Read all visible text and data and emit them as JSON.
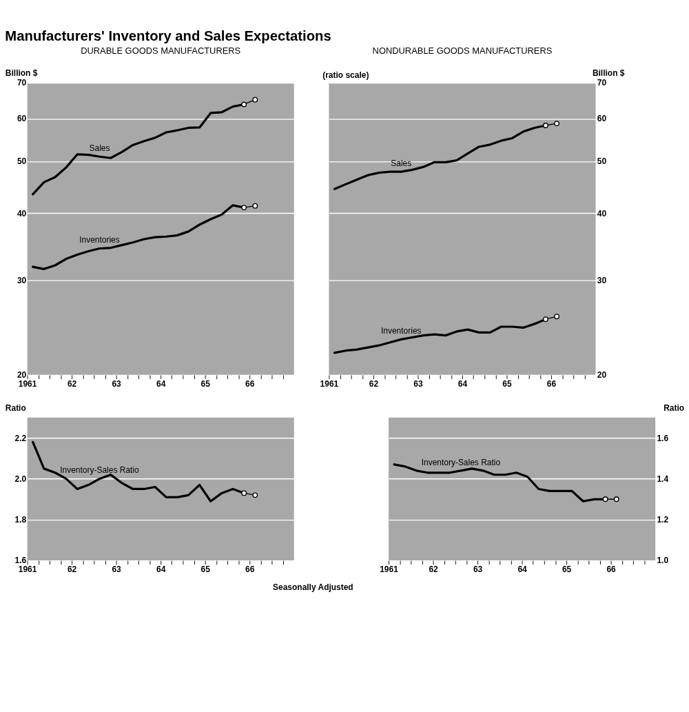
{
  "chart_data": [
    {
      "type": "line",
      "title": "Manufacturers' Inventory and Sales Expectations",
      "subtitle": "DURABLE GOODS MANUFACTURERS",
      "ylabel": "Billion $",
      "log": "y",
      "grid": "y",
      "xlim": [
        1961,
        1967
      ],
      "ylim": [
        20,
        70
      ],
      "yticks": [
        20,
        30,
        40,
        50,
        60,
        70
      ],
      "xticks": [
        {
          "value": 1961,
          "label": "1961"
        },
        {
          "value": 1961.25,
          "label": null
        },
        {
          "value": 1961.5,
          "label": null
        },
        {
          "value": 1961.75,
          "label": null
        },
        {
          "value": 1962,
          "label": "62"
        },
        {
          "value": 1962.25,
          "label": null
        },
        {
          "value": 1962.5,
          "label": null
        },
        {
          "value": 1962.75,
          "label": null
        },
        {
          "value": 1963,
          "label": "63"
        },
        {
          "value": 1963.25,
          "label": null
        },
        {
          "value": 1963.5,
          "label": null
        },
        {
          "value": 1963.75,
          "label": null
        },
        {
          "value": 1964,
          "label": "64"
        },
        {
          "value": 1964.25,
          "label": null
        },
        {
          "value": 1964.5,
          "label": null
        },
        {
          "value": 1964.75,
          "label": null
        },
        {
          "value": 1965,
          "label": "65"
        },
        {
          "value": 1965.25,
          "label": null
        },
        {
          "value": 1965.5,
          "label": null
        },
        {
          "value": 1965.75,
          "label": null
        },
        {
          "value": 1966,
          "label": "66"
        },
        {
          "value": 1966.25,
          "label": null
        },
        {
          "value": 1966.5,
          "label": null
        },
        {
          "value": 1966.75,
          "label": null
        }
      ],
      "series": [
        {
          "name": "Sales",
          "color": "#000000",
          "x": [
            1961.125,
            1961.375,
            1961.625,
            1961.875,
            1962.125,
            1962.375,
            1962.625,
            1962.875,
            1963.125,
            1963.375,
            1963.625,
            1963.875,
            1964.125,
            1964.375,
            1964.625,
            1964.875,
            1965.125,
            1965.375,
            1965.625,
            1965.875
          ],
          "values": [
            43.4,
            45.7,
            46.7,
            48.7,
            51.5,
            51.4,
            51.0,
            50.7,
            52.0,
            53.6,
            54.5,
            55.3,
            56.6,
            57.1,
            57.7,
            57.8,
            61.5,
            61.7,
            63.2,
            63.8
          ]
        },
        {
          "color": "#000000",
          "marker": "circle",
          "x": [
            1965.875,
            1966.125
          ],
          "values": [
            63.8,
            65.1
          ]
        },
        {
          "name": "Inventories",
          "color": "#000000",
          "x": [
            1961.125,
            1961.375,
            1961.625,
            1961.875,
            1962.125,
            1962.375,
            1962.625,
            1962.875,
            1963.125,
            1963.375,
            1963.625,
            1963.875,
            1964.125,
            1964.375,
            1964.625,
            1964.875,
            1965.125,
            1965.375,
            1965.625,
            1965.875
          ],
          "values": [
            31.8,
            31.5,
            32.0,
            32.9,
            33.5,
            34.0,
            34.4,
            34.5,
            34.9,
            35.3,
            35.8,
            36.1,
            36.2,
            36.4,
            37.0,
            38.1,
            39.0,
            39.8,
            41.4,
            41.0
          ]
        },
        {
          "color": "#000000",
          "marker": "circle",
          "x": [
            1965.875,
            1966.125
          ],
          "values": [
            41.0,
            41.3
          ]
        }
      ]
    },
    {
      "type": "line",
      "subtitle": "NONDURABLE GOODS MANUFACTURERS",
      "y2label": "Billion $",
      "log": "y2",
      "grid": "y",
      "annotations": [
        "(ratio scale)"
      ],
      "xlim": [
        1961,
        1967
      ],
      "y2lim": [
        20,
        70
      ],
      "y2ticks": [
        20,
        30,
        40,
        50,
        60,
        70
      ],
      "xticks": [
        {
          "value": 1961,
          "label": "1961"
        },
        {
          "value": 1961.25,
          "label": null
        },
        {
          "value": 1961.5,
          "label": null
        },
        {
          "value": 1961.75,
          "label": null
        },
        {
          "value": 1962,
          "label": "62"
        },
        {
          "value": 1962.25,
          "label": null
        },
        {
          "value": 1962.5,
          "label": null
        },
        {
          "value": 1962.75,
          "label": null
        },
        {
          "value": 1963,
          "label": "63"
        },
        {
          "value": 1963.25,
          "label": null
        },
        {
          "value": 1963.5,
          "label": null
        },
        {
          "value": 1963.75,
          "label": null
        },
        {
          "value": 1964,
          "label": "64"
        },
        {
          "value": 1964.25,
          "label": null
        },
        {
          "value": 1964.5,
          "label": null
        },
        {
          "value": 1964.75,
          "label": null
        },
        {
          "value": 1965,
          "label": "65"
        },
        {
          "value": 1965.25,
          "label": null
        },
        {
          "value": 1965.5,
          "label": null
        },
        {
          "value": 1965.75,
          "label": null
        },
        {
          "value": 1966,
          "label": "66"
        },
        {
          "value": 1966.25,
          "label": null
        },
        {
          "value": 1966.5,
          "label": null
        },
        {
          "value": 1966.75,
          "label": null
        }
      ],
      "series": [
        {
          "name": "Sales",
          "color": "#000000",
          "axis": "y2",
          "x": [
            1961.125,
            1961.375,
            1961.625,
            1961.875,
            1962.125,
            1962.375,
            1962.625,
            1962.875,
            1963.125,
            1963.375,
            1963.625,
            1963.875,
            1964.125,
            1964.375,
            1964.625,
            1964.875,
            1965.125,
            1965.375,
            1965.625,
            1965.875
          ],
          "values": [
            44.4,
            45.3,
            46.2,
            47.1,
            47.6,
            47.8,
            47.8,
            48.2,
            48.8,
            49.8,
            49.8,
            50.2,
            51.7,
            53.2,
            53.7,
            54.6,
            55.2,
            56.8,
            57.7,
            58.3
          ]
        },
        {
          "color": "#000000",
          "axis": "y2",
          "marker": "circle",
          "x": [
            1965.875,
            1966.125
          ],
          "values": [
            58.3,
            58.8
          ]
        },
        {
          "name": "Inventories",
          "color": "#000000",
          "axis": "y2",
          "x": [
            1961.125,
            1961.375,
            1961.625,
            1961.875,
            1962.125,
            1962.375,
            1962.625,
            1962.875,
            1963.125,
            1963.375,
            1963.625,
            1963.875,
            1964.125,
            1964.375,
            1964.625,
            1964.875,
            1965.125,
            1965.375,
            1965.625,
            1965.875
          ],
          "values": [
            22.0,
            22.2,
            22.3,
            22.5,
            22.7,
            23.0,
            23.3,
            23.5,
            23.7,
            23.8,
            23.7,
            24.1,
            24.3,
            24.0,
            24.0,
            24.6,
            24.6,
            24.5,
            24.9,
            25.4
          ]
        },
        {
          "color": "#000000",
          "axis": "y2",
          "marker": "circle",
          "x": [
            1965.875,
            1966.125
          ],
          "values": [
            25.4,
            25.7
          ]
        }
      ]
    },
    {
      "type": "line",
      "ylabel": "Ratio",
      "grid": "y",
      "annotations": [
        "Seasonally Adjusted"
      ],
      "xlim": [
        1961,
        1967
      ],
      "ylim": [
        1.6,
        2.3
      ],
      "yticks": [
        1.6,
        1.8,
        {
          "value": 2,
          "label": "2.0"
        },
        2.2
      ],
      "xticks": [
        {
          "value": 1961,
          "label": "1961"
        },
        {
          "value": 1961.25,
          "label": null
        },
        {
          "value": 1961.5,
          "label": null
        },
        {
          "value": 1961.75,
          "label": null
        },
        {
          "value": 1962,
          "label": "62"
        },
        {
          "value": 1962.25,
          "label": null
        },
        {
          "value": 1962.5,
          "label": null
        },
        {
          "value": 1962.75,
          "label": null
        },
        {
          "value": 1963,
          "label": "63"
        },
        {
          "value": 1963.25,
          "label": null
        },
        {
          "value": 1963.5,
          "label": null
        },
        {
          "value": 1963.75,
          "label": null
        },
        {
          "value": 1964,
          "label": "64"
        },
        {
          "value": 1964.25,
          "label": null
        },
        {
          "value": 1964.5,
          "label": null
        },
        {
          "value": 1964.75,
          "label": null
        },
        {
          "value": 1965,
          "label": "65"
        },
        {
          "value": 1965.25,
          "label": null
        },
        {
          "value": 1965.5,
          "label": null
        },
        {
          "value": 1965.75,
          "label": null
        },
        {
          "value": 1966,
          "label": "66"
        },
        {
          "value": 1966.25,
          "label": null
        },
        {
          "value": 1966.5,
          "label": null
        },
        {
          "value": 1966.75,
          "label": null
        }
      ],
      "series": [
        {
          "name": "Inventory-Sales Ratio",
          "color": "#000000",
          "x": [
            1961.125,
            1961.375,
            1961.625,
            1961.875,
            1962.125,
            1962.375,
            1962.625,
            1962.875,
            1963.125,
            1963.375,
            1963.625,
            1963.875,
            1964.125,
            1964.375,
            1964.625,
            1964.875,
            1965.125,
            1965.375,
            1965.625,
            1965.875
          ],
          "values": [
            2.18,
            2.05,
            2.03,
            2.0,
            1.95,
            1.97,
            2.0,
            2.02,
            1.98,
            1.95,
            1.95,
            1.96,
            1.91,
            1.91,
            1.92,
            1.97,
            1.89,
            1.93,
            1.95,
            1.93
          ]
        },
        {
          "color": "#000000",
          "marker": "circle",
          "x": [
            1965.875,
            1966.125
          ],
          "values": [
            1.93,
            1.92
          ]
        }
      ]
    },
    {
      "type": "line",
      "y2label": "Ratio",
      "grid": "y",
      "xlim": [
        1961,
        1967
      ],
      "y2lim": [
        1.0,
        1.7
      ],
      "y2ticks": [
        {
          "value": 1,
          "label": "1.0"
        },
        1.2,
        1.4,
        1.6
      ],
      "xticks": [
        {
          "value": 1961,
          "label": "1961"
        },
        {
          "value": 1961.25,
          "label": null
        },
        {
          "value": 1961.5,
          "label": null
        },
        {
          "value": 1961.75,
          "label": null
        },
        {
          "value": 1962,
          "label": "62"
        },
        {
          "value": 1962.25,
          "label": null
        },
        {
          "value": 1962.5,
          "label": null
        },
        {
          "value": 1962.75,
          "label": null
        },
        {
          "value": 1963,
          "label": "63"
        },
        {
          "value": 1963.25,
          "label": null
        },
        {
          "value": 1963.5,
          "label": null
        },
        {
          "value": 1963.75,
          "label": null
        },
        {
          "value": 1964,
          "label": "64"
        },
        {
          "value": 1964.25,
          "label": null
        },
        {
          "value": 1964.5,
          "label": null
        },
        {
          "value": 1964.75,
          "label": null
        },
        {
          "value": 1965,
          "label": "65"
        },
        {
          "value": 1965.25,
          "label": null
        },
        {
          "value": 1965.5,
          "label": null
        },
        {
          "value": 1965.75,
          "label": null
        },
        {
          "value": 1966,
          "label": "66"
        },
        {
          "value": 1966.25,
          "label": null
        },
        {
          "value": 1966.5,
          "label": null
        },
        {
          "value": 1966.75,
          "label": null
        }
      ],
      "series": [
        {
          "name": "Inventory-Sales Ratio",
          "color": "#000000",
          "axis": "y2",
          "x": [
            1961.125,
            1961.375,
            1961.625,
            1961.875,
            1962.125,
            1962.375,
            1962.625,
            1962.875,
            1963.125,
            1963.375,
            1963.625,
            1963.875,
            1964.125,
            1964.375,
            1964.625,
            1964.875,
            1965.125,
            1965.375,
            1965.625,
            1965.875
          ],
          "values": [
            1.47,
            1.46,
            1.44,
            1.43,
            1.43,
            1.43,
            1.44,
            1.45,
            1.44,
            1.42,
            1.42,
            1.43,
            1.41,
            1.35,
            1.34,
            1.34,
            1.34,
            1.29,
            1.3,
            1.3
          ]
        },
        {
          "color": "#000000",
          "axis": "y2",
          "marker": "circle",
          "x": [
            1965.875,
            1966.125
          ],
          "values": [
            1.3,
            1.3
          ]
        }
      ]
    }
  ]
}
